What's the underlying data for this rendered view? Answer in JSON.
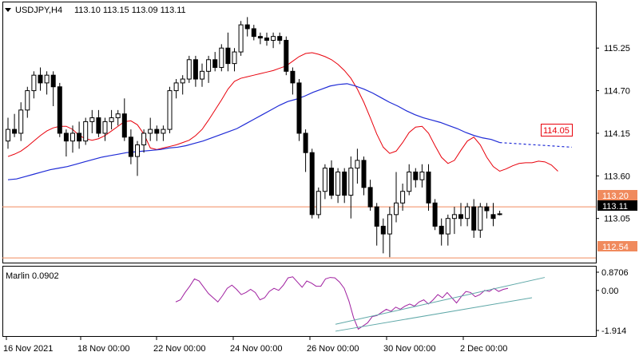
{
  "header": {
    "symbol": "USDJPY,H4",
    "ohlc": "113.10 113.15 113.09 113.11"
  },
  "price_axis": {
    "ticks": [
      "115.25",
      "114.70",
      "114.15",
      "113.60",
      "113.05"
    ],
    "current_price": "113.11"
  },
  "levels": {
    "upper": "113.20",
    "lower": "112.54",
    "target": "114.05"
  },
  "time_axis": {
    "labels": [
      "16 Nov 2021",
      "18 Nov 00:00",
      "22 Nov 00:00",
      "24 Nov 00:00",
      "26 Nov 00:00",
      "30 Nov 00:00",
      "2 Dec 00:00"
    ]
  },
  "oscillator": {
    "label": "Marlin 0.0902",
    "ticks": [
      "0.8706",
      "0.00",
      "-1.914"
    ]
  },
  "colors": {
    "bull": "#ffffff",
    "bear": "#000000",
    "red_ma": "#e8000b",
    "blue_ma": "#1f2bd6",
    "level": "#f08a5d",
    "oscillator": "#a020a0",
    "channel": "#5fa8a8"
  },
  "chart_data": {
    "type": "candlestick",
    "series": [
      {
        "name": "USDJPY,H4",
        "ohlc": [
          [
            114.05,
            114.35,
            113.95,
            114.2
          ],
          [
            114.2,
            114.4,
            114.1,
            114.15
          ],
          [
            114.15,
            114.55,
            114.05,
            114.45
          ],
          [
            114.45,
            114.75,
            114.35,
            114.7
          ],
          [
            114.7,
            114.95,
            114.6,
            114.9
          ],
          [
            114.9,
            115.0,
            114.7,
            114.8
          ],
          [
            114.8,
            114.95,
            114.65,
            114.9
          ],
          [
            114.9,
            114.95,
            114.5,
            114.75
          ],
          [
            114.75,
            114.8,
            114.1,
            114.15
          ],
          [
            114.15,
            114.2,
            113.85,
            114.05
          ],
          [
            114.05,
            114.25,
            113.9,
            114.15
          ],
          [
            114.15,
            114.3,
            113.95,
            114.05
          ],
          [
            114.05,
            114.35,
            114.0,
            114.3
          ],
          [
            114.3,
            114.45,
            114.15,
            114.35
          ],
          [
            114.35,
            114.45,
            114.1,
            114.15
          ],
          [
            114.15,
            114.35,
            114.05,
            114.3
          ],
          [
            114.3,
            114.45,
            114.2,
            114.35
          ],
          [
            114.35,
            114.45,
            114.25,
            114.4
          ],
          [
            114.4,
            114.6,
            114.05,
            114.1
          ],
          [
            114.1,
            114.2,
            113.75,
            113.85
          ],
          [
            113.85,
            114.05,
            113.6,
            114.0
          ],
          [
            114.0,
            114.2,
            113.9,
            114.15
          ],
          [
            114.15,
            114.35,
            114.05,
            114.2
          ],
          [
            114.2,
            114.25,
            114.05,
            114.15
          ],
          [
            114.15,
            114.25,
            114.05,
            114.2
          ],
          [
            114.2,
            114.75,
            114.15,
            114.7
          ],
          [
            114.7,
            114.85,
            114.6,
            114.8
          ],
          [
            114.8,
            114.9,
            114.65,
            114.85
          ],
          [
            114.85,
            115.15,
            114.8,
            115.1
          ],
          [
            115.1,
            115.15,
            114.75,
            114.85
          ],
          [
            114.85,
            115.05,
            114.75,
            114.95
          ],
          [
            114.95,
            115.15,
            114.8,
            115.1
          ],
          [
            115.1,
            115.2,
            114.95,
            115.0
          ],
          [
            115.0,
            115.3,
            114.95,
            115.25
          ],
          [
            115.25,
            115.45,
            114.95,
            115.05
          ],
          [
            115.05,
            115.25,
            114.95,
            115.2
          ],
          [
            115.2,
            115.6,
            115.15,
            115.55
          ],
          [
            115.55,
            115.65,
            115.4,
            115.5
          ],
          [
            115.5,
            115.55,
            115.35,
            115.4
          ],
          [
            115.4,
            115.45,
            115.3,
            115.38
          ],
          [
            115.38,
            115.45,
            115.28,
            115.35
          ],
          [
            115.35,
            115.45,
            115.25,
            115.4
          ],
          [
            115.4,
            115.45,
            115.3,
            115.35
          ],
          [
            115.35,
            115.4,
            114.9,
            114.95
          ],
          [
            114.95,
            115.0,
            114.65,
            114.8
          ],
          [
            114.8,
            114.85,
            114.05,
            114.15
          ],
          [
            114.15,
            114.2,
            113.65,
            113.9
          ],
          [
            113.9,
            113.95,
            113.05,
            113.1
          ],
          [
            113.1,
            113.45,
            113.05,
            113.4
          ],
          [
            113.4,
            113.75,
            113.3,
            113.7
          ],
          [
            113.7,
            113.8,
            113.3,
            113.35
          ],
          [
            113.35,
            113.7,
            113.25,
            113.65
          ],
          [
            113.65,
            113.7,
            113.25,
            113.35
          ],
          [
            113.35,
            113.85,
            113.05,
            113.7
          ],
          [
            113.7,
            113.95,
            113.5,
            113.8
          ],
          [
            113.8,
            113.85,
            113.35,
            113.45
          ],
          [
            113.45,
            113.55,
            113.15,
            113.2
          ],
          [
            113.2,
            113.25,
            112.7,
            112.95
          ],
          [
            112.95,
            113.05,
            112.6,
            112.85
          ],
          [
            112.85,
            113.2,
            112.55,
            113.1
          ],
          [
            113.1,
            113.65,
            113.0,
            113.25
          ],
          [
            113.25,
            113.5,
            113.15,
            113.4
          ],
          [
            113.4,
            113.75,
            113.35,
            113.65
          ],
          [
            113.65,
            113.7,
            113.45,
            113.55
          ],
          [
            113.55,
            113.75,
            113.45,
            113.65
          ],
          [
            113.65,
            113.75,
            113.15,
            113.25
          ],
          [
            113.25,
            113.3,
            112.9,
            112.95
          ],
          [
            112.95,
            113.05,
            112.7,
            112.85
          ],
          [
            112.85,
            113.1,
            112.7,
            113.05
          ],
          [
            113.05,
            113.2,
            112.85,
            113.1
          ],
          [
            113.1,
            113.25,
            112.95,
            113.05
          ],
          [
            113.05,
            113.25,
            112.95,
            113.2
          ],
          [
            113.2,
            113.3,
            112.8,
            112.9
          ],
          [
            112.9,
            113.25,
            112.8,
            113.2
          ],
          [
            113.2,
            113.25,
            113.05,
            113.15
          ],
          [
            113.1,
            113.25,
            112.95,
            113.05
          ],
          [
            113.1,
            113.15,
            113.09,
            113.11
          ]
        ]
      },
      {
        "name": "Red MA",
        "values": [
          113.85,
          113.88,
          113.92,
          113.98,
          114.05,
          114.12,
          114.18,
          114.22,
          114.24,
          114.24,
          114.2,
          114.12,
          114.08,
          114.06,
          114.08,
          114.12,
          114.18,
          114.24,
          114.3,
          114.31,
          114.26,
          114.14,
          113.96,
          113.94,
          113.96,
          113.98,
          114.0,
          114.03,
          114.06,
          114.12,
          114.2,
          114.32,
          114.45,
          114.58,
          114.72,
          114.82,
          114.86,
          114.88,
          114.9,
          114.92,
          114.94,
          114.96,
          114.99,
          115.02,
          115.08,
          115.14,
          115.18,
          115.19,
          115.17,
          115.14,
          115.1,
          115.04,
          114.96,
          114.86,
          114.72,
          114.55,
          114.35,
          114.14,
          113.97,
          113.89,
          113.92,
          114.03,
          114.16,
          114.23,
          114.24,
          114.15,
          113.99,
          113.84,
          113.76,
          113.8,
          113.93,
          114.05,
          114.1,
          114.0,
          113.84,
          113.72,
          113.66,
          113.69,
          113.73,
          113.76,
          113.77,
          113.77,
          113.79,
          113.78,
          113.74,
          113.66
        ]
      },
      {
        "name": "Blue MA",
        "values": [
          113.55,
          113.56,
          113.59,
          113.62,
          113.65,
          113.68,
          113.7,
          113.72,
          113.75,
          113.78,
          113.81,
          113.84,
          113.86,
          113.88,
          113.9,
          113.91,
          113.92,
          113.93,
          113.94,
          113.96,
          113.97,
          113.99,
          114.02,
          114.05,
          114.09,
          114.13,
          114.17,
          114.21,
          114.27,
          114.33,
          114.39,
          114.45,
          114.51,
          114.56,
          114.59,
          114.63,
          114.68,
          114.72,
          114.76,
          114.78,
          114.79,
          114.76,
          114.72,
          114.67,
          114.61,
          114.55,
          114.5,
          114.44,
          114.39,
          114.35,
          114.32,
          114.29,
          114.25,
          114.21,
          114.16,
          114.12,
          114.09,
          114.07,
          114.03
        ]
      },
      {
        "name": "Marlin",
        "values": [
          -0.55,
          -0.45,
          -0.1,
          0.2,
          0.55,
          0.45,
          0.15,
          -0.15,
          -0.35,
          -0.55,
          -0.25,
          0.1,
          0.25,
          0.05,
          -0.2,
          -0.1,
          0.05,
          -0.1,
          -0.45,
          -0.35,
          -0.05,
          0.1,
          0.0,
          0.25,
          0.6,
          0.65,
          0.4,
          0.15,
          0.45,
          0.35,
          0.2,
          0.2,
          0.55,
          0.62,
          0.6,
          0.4,
          0.1,
          -0.5,
          -1.3,
          -1.85,
          -1.7,
          -1.55,
          -1.25,
          -1.2,
          -1.05,
          -0.9,
          -1.0,
          -0.8,
          -0.9,
          -0.75,
          -0.65,
          -0.75,
          -0.55,
          -0.45,
          -0.65,
          -0.45,
          -0.2,
          -0.35,
          -0.1,
          -0.35,
          -0.6,
          -0.3,
          -0.05,
          -0.1,
          -0.3,
          -0.2,
          0.0,
          -0.05,
          0.1,
          -0.05,
          0.05,
          0.1
        ]
      }
    ],
    "price_ylim": [
      112.48,
      115.85
    ],
    "osc_ylim": [
      -1.914,
      0.8706
    ]
  }
}
